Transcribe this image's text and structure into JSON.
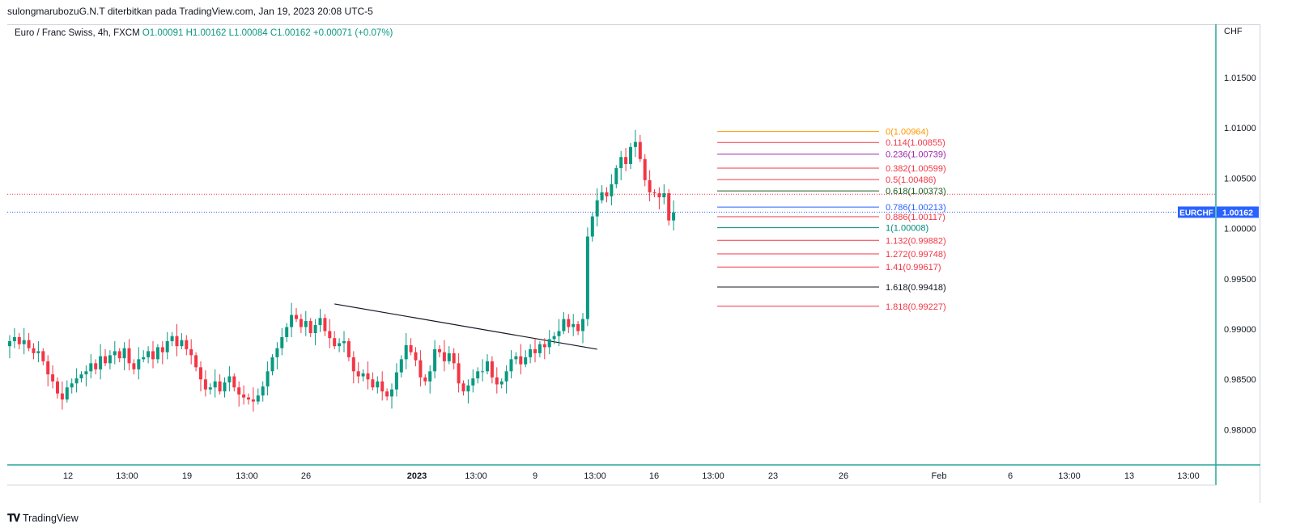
{
  "header": {
    "published": "sulongmarubozuG.N.T diterbitkan pada TradingView.com, Jan 19, 2023 20:08 UTC-5"
  },
  "legend": {
    "symbol": "Euro / Franc Swiss, 4h, FXCM",
    "open": "O1.00091",
    "high": "H1.00162",
    "low": "L1.00084",
    "close": "C1.00162",
    "change": "+0.00071 (+0.07%)"
  },
  "footer": {
    "brand": "TradingView",
    "logo_icon": "tradingview-logo-icon"
  },
  "chart_data": {
    "type": "candlestick",
    "currency_label": "CHF",
    "y_ticks": [
      "1.01500",
      "1.01000",
      "1.00500",
      "1.00000",
      "0.99500",
      "0.99000",
      "0.98500",
      "0.98000"
    ],
    "y_tick_values": [
      1.015,
      1.01,
      1.005,
      1.0,
      0.995,
      0.99,
      0.985,
      0.98
    ],
    "ylim": [
      0.9765,
      1.0203
    ],
    "x_ticks": [
      "12",
      "13:00",
      "19",
      "13:00",
      "26",
      "2023",
      "13:00",
      "9",
      "13:00",
      "16",
      "13:00",
      "23",
      "26",
      "Feb",
      "6",
      "13:00",
      "13",
      "13:00"
    ],
    "x_tick_bold": [
      false,
      false,
      false,
      false,
      false,
      true,
      false,
      false,
      false,
      false,
      false,
      false,
      false,
      false,
      false,
      false,
      false,
      false
    ],
    "last_price": {
      "symbol": "EURCHF",
      "value": "1.00162",
      "numeric": 1.00162,
      "color": "#2962ff"
    },
    "red_dotted_level": 1.0034,
    "up_color": "#089981",
    "down_color": "#f23645",
    "closes": [
      0.9888,
      0.9892,
      0.9885,
      0.9889,
      0.9881,
      0.9876,
      0.9878,
      0.9868,
      0.9855,
      0.9848,
      0.9836,
      0.983,
      0.9842,
      0.9846,
      0.9851,
      0.9855,
      0.9858,
      0.9866,
      0.986,
      0.9873,
      0.9866,
      0.9874,
      0.9878,
      0.9871,
      0.9881,
      0.9866,
      0.986,
      0.987,
      0.9872,
      0.9878,
      0.987,
      0.9882,
      0.9877,
      0.9888,
      0.9893,
      0.9883,
      0.9889,
      0.988,
      0.9874,
      0.9862,
      0.985,
      0.984,
      0.9842,
      0.9848,
      0.9838,
      0.9847,
      0.9853,
      0.9842,
      0.9835,
      0.9832,
      0.983,
      0.9828,
      0.9834,
      0.9843,
      0.9858,
      0.9872,
      0.9881,
      0.9892,
      0.9902,
      0.9914,
      0.991,
      0.9902,
      0.9908,
      0.9896,
      0.9904,
      0.9911,
      0.9898,
      0.9891,
      0.9883,
      0.9886,
      0.9888,
      0.9872,
      0.9858,
      0.9853,
      0.9856,
      0.985,
      0.9842,
      0.9848,
      0.9838,
      0.9833,
      0.984,
      0.9857,
      0.987,
      0.9884,
      0.9877,
      0.9869,
      0.9852,
      0.9848,
      0.9858,
      0.988,
      0.9877,
      0.9868,
      0.9876,
      0.9866,
      0.9846,
      0.9838,
      0.9844,
      0.9851,
      0.9858,
      0.9858,
      0.9868,
      0.9852,
      0.9845,
      0.9848,
      0.9858,
      0.987,
      0.9873,
      0.9865,
      0.9872,
      0.988,
      0.9876,
      0.9885,
      0.9882,
      0.989,
      0.9893,
      0.9898,
      0.991,
      0.9902,
      0.9905,
      0.9898,
      0.991,
      0.9992,
      1.0012,
      1.0028,
      1.0036,
      1.0032,
      1.0044,
      1.006,
      1.0071,
      1.0064,
      1.0081,
      1.0086,
      1.0069,
      1.0048,
      1.0036,
      1.0035,
      1.0031,
      1.0035,
      1.0008,
      1.0016
    ],
    "fibonacci": [
      {
        "label": "0(1.00964)",
        "ratio": "0",
        "value": 1.00964,
        "color": "#ff9800"
      },
      {
        "label": "0.114(1.00855)",
        "ratio": "0.114",
        "value": 1.00855,
        "color": "#f23645"
      },
      {
        "label": "0.236(1.00739)",
        "ratio": "0.236",
        "value": 1.00739,
        "color": "#9c27b0"
      },
      {
        "label": "0.382(1.00599)",
        "ratio": "0.382",
        "value": 1.00599,
        "color": "#f23645"
      },
      {
        "label": "0.5(1.00486)",
        "ratio": "0.5",
        "value": 1.00486,
        "color": "#f23645"
      },
      {
        "label": "0.618(1.00373)",
        "ratio": "0.618",
        "value": 1.00373,
        "color": "#1b5e20"
      },
      {
        "label": "0.786(1.00213)",
        "ratio": "0.786",
        "value": 1.00213,
        "color": "#2962ff"
      },
      {
        "label": "0.886(1.00117)",
        "ratio": "0.886",
        "value": 1.00117,
        "color": "#f23645"
      },
      {
        "label": "1(1.00008)",
        "ratio": "1",
        "value": 1.00008,
        "color": "#00897b"
      },
      {
        "label": "1.132(0.99882)",
        "ratio": "1.132",
        "value": 0.99882,
        "color": "#f23645"
      },
      {
        "label": "1.272(0.99748)",
        "ratio": "1.272",
        "value": 0.99748,
        "color": "#f23645"
      },
      {
        "label": "1.41(0.99617)",
        "ratio": "1.41",
        "value": 0.99617,
        "color": "#f23645"
      },
      {
        "label": "1.618(0.99418)",
        "ratio": "1.618",
        "value": 0.99418,
        "color": "#131722"
      },
      {
        "label": "1.818(0.99227)",
        "ratio": "1.818",
        "value": 0.99227,
        "color": "#f23645"
      }
    ],
    "trendline": {
      "start": {
        "bar": 68,
        "value": 0.9925
      },
      "end": {
        "bar": 123,
        "value": 0.988
      }
    }
  }
}
